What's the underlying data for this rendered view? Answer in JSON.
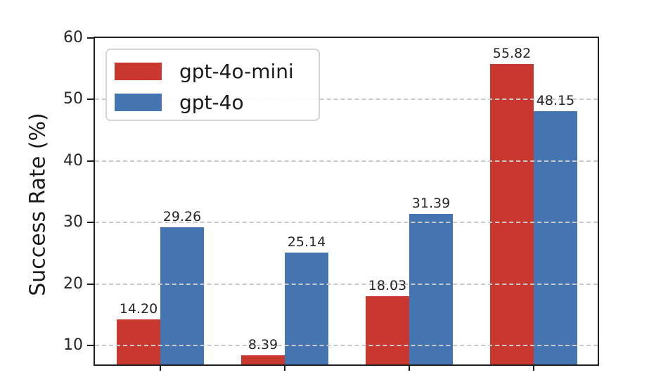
{
  "chart_data": {
    "type": "bar",
    "title": "",
    "xlabel": "",
    "ylabel": "Success Rate (%)",
    "categories": [
      "",
      "",
      "",
      ""
    ],
    "series": [
      {
        "name": "gpt-4o-mini",
        "color": "#c8382f",
        "values": [
          14.2,
          8.39,
          18.03,
          55.82
        ],
        "value_labels": [
          "14.20",
          "8.39",
          "18.03",
          "55.82"
        ]
      },
      {
        "name": "gpt-4o",
        "color": "#4575b1",
        "values": [
          29.26,
          25.14,
          31.39,
          48.15
        ],
        "value_labels": [
          "29.26",
          "25.14",
          "31.39",
          "48.15"
        ]
      }
    ],
    "yticks": [
      10,
      20,
      30,
      40,
      50,
      60
    ],
    "ytick_labels": [
      "10",
      "20",
      "30",
      "40",
      "50",
      "60"
    ],
    "ylim": [
      6.9,
      60
    ],
    "grid": "horizontal-dashed",
    "legend_position": "upper-left",
    "note_colors": {
      "spine": "#1f1f1f",
      "gridline": "#c9c9c9",
      "text": "#262626"
    }
  }
}
